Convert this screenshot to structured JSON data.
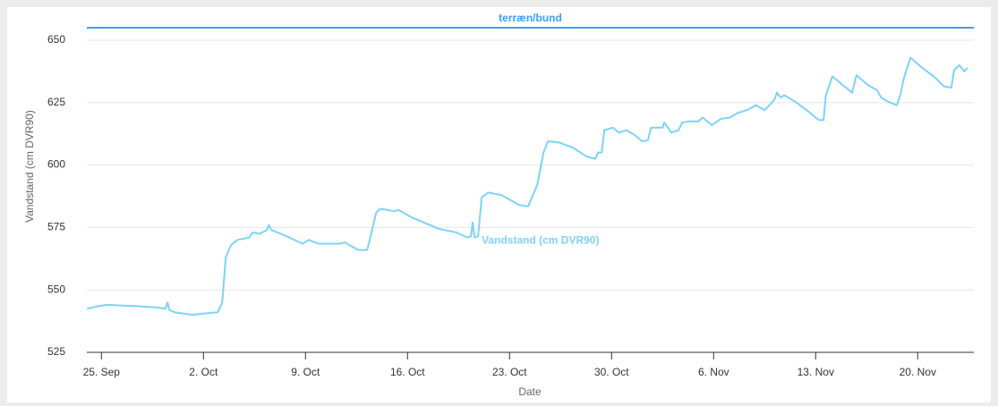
{
  "chart_data": {
    "type": "line",
    "x_label": "Date",
    "y_label": "Vandstand (cm DVR90)",
    "plot_line": {
      "label": "terræn/bund",
      "value": 655,
      "color": "#3d9df2"
    },
    "xlim": [
      -1,
      59.85
    ],
    "xticks": [
      {
        "value": 0,
        "label": "25. Sep"
      },
      {
        "value": 7,
        "label": "2. Oct"
      },
      {
        "value": 14,
        "label": "9. Oct"
      },
      {
        "value": 21,
        "label": "16. Oct"
      },
      {
        "value": 28,
        "label": "23. Oct"
      },
      {
        "value": 35,
        "label": "30. Oct"
      },
      {
        "value": 42,
        "label": "6. Nov"
      },
      {
        "value": 49,
        "label": "13. Nov"
      },
      {
        "value": 56,
        "label": "20. Nov"
      }
    ],
    "ylim": [
      525,
      655
    ],
    "yticks": [
      525,
      550,
      575,
      600,
      625,
      650
    ],
    "grid": true,
    "x": [
      -0.98,
      -0.18,
      0.43,
      2.27,
      3.8,
      4.4,
      4.54,
      4.66,
      5.03,
      6.26,
      6.9,
      7.98,
      8.29,
      8.53,
      8.9,
      9.33,
      10.13,
      10.37,
      10.87,
      11.36,
      11.48,
      11.66,
      12.7,
      13.8,
      14.24,
      14.86,
      16.39,
      16.7,
      17.13,
      17.62,
      18.23,
      18.48,
      18.85,
      19.15,
      20.07,
      20.38,
      21.3,
      23.14,
      24.37,
      25.1,
      25.35,
      25.47,
      25.6,
      25.84,
      26.09,
      26.52,
      27.44,
      28.67,
      29.28,
      29.9,
      30.33,
      30.63,
      31.4,
      32.34,
      33.27,
      33.89,
      34.07,
      34.32,
      34.5,
      35.1,
      35.5,
      36,
      36.6,
      37.1,
      37.5,
      37.7,
      38.5,
      38.62,
      39.1,
      39.6,
      39.84,
      40.3,
      40.95,
      41.26,
      41.87,
      42.5,
      43.1,
      43.7,
      44.3,
      44.9,
      45.5,
      46.16,
      46.34,
      46.6,
      46.84,
      47.7,
      48.6,
      49.2,
      49.54,
      49.7,
      50.15,
      51.07,
      51.5,
      51.8,
      52.6,
      53.2,
      53.5,
      54.1,
      54.57,
      54.8,
      55.06,
      55.5,
      56.3,
      57.2,
      57.8,
      58.3,
      58.5,
      58.86,
      59.2,
      59.42
    ],
    "series": [
      {
        "name": "Vandstand (cm DVR90)",
        "color": "#7dd3f7",
        "values": [
          542.5,
          543.5,
          544,
          543.5,
          543,
          542.5,
          545,
          542,
          541,
          540,
          540.5,
          541,
          545,
          563,
          568,
          570,
          571,
          573,
          572.5,
          574,
          576,
          574,
          571.5,
          568.5,
          570,
          568.5,
          568.5,
          569,
          567.5,
          566,
          566,
          572,
          581,
          582.5,
          581.5,
          582,
          579,
          574.5,
          573,
          571,
          571.5,
          577,
          571,
          571.5,
          587,
          589,
          588,
          584,
          583.5,
          592,
          605,
          609.5,
          609,
          607,
          603.5,
          602.5,
          605,
          605,
          614,
          615,
          613,
          614,
          612,
          609.5,
          610,
          615,
          615,
          617,
          613,
          614,
          617,
          617.5,
          617.5,
          619,
          616,
          618.5,
          619,
          621,
          622,
          624,
          622,
          626,
          629,
          627,
          628,
          625,
          621,
          618,
          618,
          628,
          635.5,
          631,
          629,
          636,
          632,
          630,
          627,
          625,
          624,
          628,
          635,
          643,
          639,
          635,
          631.5,
          631,
          638,
          640,
          637.5,
          639
        ]
      }
    ]
  }
}
